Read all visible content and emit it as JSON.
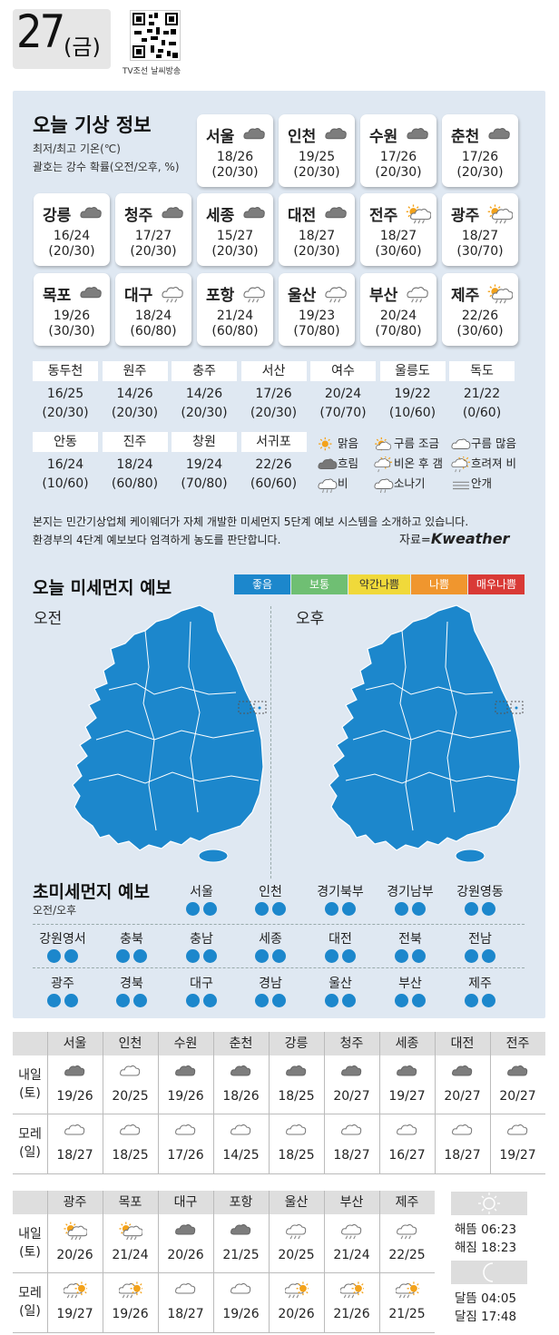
{
  "header": {
    "day": "27",
    "weekday": "(금)",
    "qr_caption": "TV조선 날씨방송"
  },
  "today": {
    "title": "오늘 기상 정보",
    "sub1": "최저/최고 기온(℃)",
    "sub2": "괄호는 강수 확률(오전/오후, %)",
    "cities": [
      {
        "name": "서울",
        "temp": "18/26",
        "rain": "(20/30)",
        "icon": "cloudy"
      },
      {
        "name": "인천",
        "temp": "19/25",
        "rain": "(20/30)",
        "icon": "cloudy"
      },
      {
        "name": "수원",
        "temp": "17/26",
        "rain": "(20/30)",
        "icon": "cloudy"
      },
      {
        "name": "춘천",
        "temp": "17/26",
        "rain": "(20/30)",
        "icon": "cloudy"
      },
      {
        "name": "강릉",
        "temp": "16/24",
        "rain": "(20/30)",
        "icon": "cloudy"
      },
      {
        "name": "청주",
        "temp": "17/27",
        "rain": "(20/30)",
        "icon": "cloudy"
      },
      {
        "name": "세종",
        "temp": "15/27",
        "rain": "(20/30)",
        "icon": "cloudy"
      },
      {
        "name": "대전",
        "temp": "18/27",
        "rain": "(20/30)",
        "icon": "cloudy"
      },
      {
        "name": "전주",
        "temp": "18/27",
        "rain": "(30/60)",
        "icon": "sun-rain"
      },
      {
        "name": "광주",
        "temp": "18/27",
        "rain": "(30/70)",
        "icon": "sun-rain"
      },
      {
        "name": "목포",
        "temp": "19/26",
        "rain": "(30/30)",
        "icon": "cloudy"
      },
      {
        "name": "대구",
        "temp": "18/24",
        "rain": "(60/80)",
        "icon": "rain"
      },
      {
        "name": "포항",
        "temp": "21/24",
        "rain": "(60/80)",
        "icon": "rain"
      },
      {
        "name": "울산",
        "temp": "19/23",
        "rain": "(70/80)",
        "icon": "rain"
      },
      {
        "name": "부산",
        "temp": "20/24",
        "rain": "(70/80)",
        "icon": "rain"
      },
      {
        "name": "제주",
        "temp": "22/26",
        "rain": "(30/60)",
        "icon": "sun-rain"
      }
    ],
    "minor_row1": [
      {
        "name": "동두천",
        "temp": "16/25",
        "rain": "(20/30)"
      },
      {
        "name": "원주",
        "temp": "14/26",
        "rain": "(20/30)"
      },
      {
        "name": "충주",
        "temp": "14/26",
        "rain": "(20/30)"
      },
      {
        "name": "서산",
        "temp": "17/26",
        "rain": "(20/30)"
      },
      {
        "name": "여수",
        "temp": "20/24",
        "rain": "(70/70)"
      },
      {
        "name": "울릉도",
        "temp": "19/22",
        "rain": "(10/60)"
      },
      {
        "name": "독도",
        "temp": "21/22",
        "rain": "(0/60)"
      }
    ],
    "minor_row2": [
      {
        "name": "안동",
        "temp": "16/24",
        "rain": "(10/60)"
      },
      {
        "name": "진주",
        "temp": "18/24",
        "rain": "(60/80)"
      },
      {
        "name": "창원",
        "temp": "19/24",
        "rain": "(70/80)"
      },
      {
        "name": "서귀포",
        "temp": "22/26",
        "rain": "(60/60)"
      }
    ],
    "legend": [
      "맑음",
      "구름 조금",
      "구름 많음",
      "흐림",
      "비온 후 갬",
      "흐려져 비",
      "비",
      "소나기",
      "안개"
    ],
    "disclaimer1": "본지는 민간기상업체 케이웨더가 자체 개발한 미세먼지 5단계 예보 시스템을 소개하고 있습니다.",
    "disclaimer2": "환경부의 4단계 예보보다 엄격하게 농도를 판단합니다.",
    "source_prefix": "자료=",
    "source_brand": "Kweather"
  },
  "dust": {
    "title": "오늘 미세먼지 예보",
    "grades": [
      {
        "label": "좋음",
        "color": "#1c87cc"
      },
      {
        "label": "보통",
        "color": "#6fbf73"
      },
      {
        "label": "약간나쁨",
        "color": "#f0d93a"
      },
      {
        "label": "나쁨",
        "color": "#f0962e"
      },
      {
        "label": "매우나쁨",
        "color": "#d93a36"
      }
    ],
    "am_label": "오전",
    "pm_label": "오후",
    "map_color": "#1c87cc"
  },
  "ultra": {
    "title": "초미세먼지 예보",
    "sub": "오전/오후",
    "regions_row1": [
      "서울",
      "인천",
      "경기북부",
      "경기남부",
      "강원영동"
    ],
    "regions_row2": [
      "강원영서",
      "충북",
      "충남",
      "세종",
      "대전",
      "전북",
      "전남"
    ],
    "regions_row3": [
      "광주",
      "경북",
      "대구",
      "경남",
      "울산",
      "부산",
      "제주"
    ]
  },
  "forecast1": {
    "cities": [
      "서울",
      "인천",
      "수원",
      "춘천",
      "강릉",
      "청주",
      "세종",
      "대전",
      "전주"
    ],
    "day1_label": [
      "내일",
      "(토)"
    ],
    "day2_label": [
      "모레",
      "(일)"
    ],
    "day1_temps": [
      "19/26",
      "20/25",
      "19/26",
      "18/26",
      "18/25",
      "20/27",
      "19/27",
      "20/27",
      "20/27"
    ],
    "day1_icons": [
      "cloudy",
      "cloud-light",
      "cloudy",
      "cloudy",
      "cloudy",
      "cloudy",
      "cloudy",
      "cloudy",
      "cloudy"
    ],
    "day2_temps": [
      "18/27",
      "18/25",
      "17/26",
      "14/25",
      "18/25",
      "18/27",
      "16/27",
      "18/27",
      "19/27"
    ],
    "day2_icons": [
      "cloud-light",
      "cloud-light",
      "cloud-light",
      "cloud-light",
      "cloud-light",
      "cloud-light",
      "cloud-light",
      "cloud-light",
      "cloud-light"
    ]
  },
  "forecast2": {
    "cities": [
      "광주",
      "목포",
      "대구",
      "포항",
      "울산",
      "부산",
      "제주"
    ],
    "day1_label": [
      "내일",
      "(토)"
    ],
    "day2_label": [
      "모레",
      "(일)"
    ],
    "day1_temps": [
      "20/26",
      "21/24",
      "20/26",
      "21/25",
      "20/25",
      "21/24",
      "22/25"
    ],
    "day1_icons": [
      "sun-rain",
      "sun-rain",
      "cloudy",
      "cloudy",
      "rain",
      "rain",
      "rain"
    ],
    "day2_temps": [
      "19/27",
      "19/26",
      "18/27",
      "19/26",
      "20/26",
      "21/26",
      "21/25"
    ],
    "day2_icons": [
      "rain-sun",
      "rain-sun",
      "cloud-light",
      "cloud-light",
      "rain-sun",
      "rain-sun",
      "rain-sun"
    ]
  },
  "sun": {
    "sunrise": "해뜸 06:23",
    "sunset": "해짐 18:23",
    "moonrise": "달뜸 04:05",
    "moonset": "달짐 17:48"
  }
}
